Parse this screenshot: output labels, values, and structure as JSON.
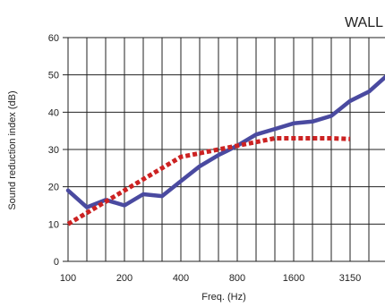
{
  "chart_data": {
    "type": "line",
    "title": "WALL",
    "xlabel": "Freq. (Hz)",
    "ylabel": "Sound reduction index (dB)",
    "ylim": [
      0,
      60
    ],
    "yticks": [
      0,
      10,
      20,
      30,
      40,
      50,
      60
    ],
    "x_scale": "log (1/3-octave bands)",
    "bands": [
      "100",
      "125",
      "160",
      "200",
      "250",
      "315",
      "400",
      "500",
      "630",
      "800",
      "1000",
      "1250",
      "1600",
      "2000",
      "2500",
      "3150",
      "4000",
      "5000"
    ],
    "xtick_labels": [
      "100",
      "200",
      "400",
      "800",
      "1600",
      "3150"
    ],
    "grid": true,
    "series": [
      {
        "style": "solid",
        "color": "#4a4aa0",
        "values": [
          19,
          14.5,
          16.5,
          15,
          18,
          17.5,
          21.5,
          25.5,
          28.5,
          31,
          34,
          35.5,
          37,
          37.5,
          39,
          43,
          45.5,
          50
        ]
      },
      {
        "style": "dotted",
        "color": "#cc2222",
        "values": [
          10,
          13,
          16,
          19,
          22,
          25,
          28,
          29,
          30,
          31,
          32,
          33,
          33,
          33,
          33,
          32.8,
          null,
          null
        ]
      }
    ]
  }
}
